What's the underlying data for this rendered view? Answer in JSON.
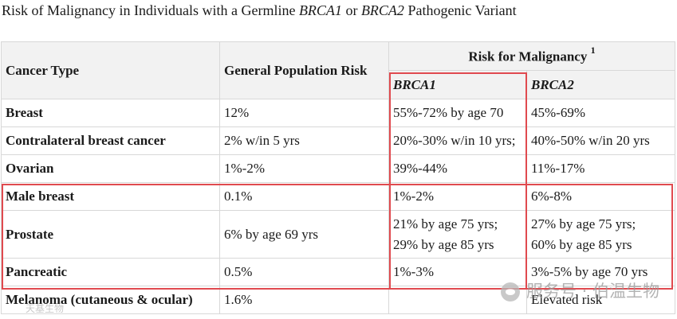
{
  "caption": {
    "prefix": "Risk of Malignancy in Individuals with a Germline ",
    "gene1": "BRCA1",
    "connector": " or ",
    "gene2": "BRCA2",
    "suffix": " Pathogenic Variant"
  },
  "headers": {
    "cancer_type": "Cancer Type",
    "general_risk": "General Population Risk",
    "risk_group": "Risk for Malignancy",
    "footnote_ref": "1",
    "brca1": "BRCA1",
    "brca2": "BRCA2"
  },
  "rows": [
    {
      "type": "Breast",
      "general": "12%",
      "brca1": [
        "55%-72% by age 70"
      ],
      "brca2": [
        "45%-69%"
      ]
    },
    {
      "type": "Contralateral breast cancer",
      "general": "2% w/in 5 yrs",
      "brca1": [
        "20%-30% w/in 10 yrs;"
      ],
      "brca2": [
        "40%-50% w/in 20 yrs"
      ]
    },
    {
      "type": "Ovarian",
      "general": "1%-2%",
      "brca1": [
        "39%-44%"
      ],
      "brca2": [
        "11%-17%"
      ]
    },
    {
      "type": "Male breast",
      "general": "0.1%",
      "brca1": [
        "1%-2%"
      ],
      "brca2": [
        "6%-8%"
      ]
    },
    {
      "type": "Prostate",
      "general": "6% by age 69 yrs",
      "brca1": [
        "21% by age 75 yrs;",
        "29% by age 85 yrs"
      ],
      "brca2": [
        "27% by age 75 yrs;",
        "60% by age 85 yrs"
      ]
    },
    {
      "type": "Pancreatic",
      "general": "0.5%",
      "brca1": [
        "1%-3%"
      ],
      "brca2": [
        "3%-5% by age 70 yrs"
      ]
    },
    {
      "type": "Melanoma (cutaneous & ocular)",
      "general": "1.6%",
      "brca1": [
        ""
      ],
      "brca2": [
        "Elevated risk"
      ]
    }
  ],
  "watermark": {
    "text": "服务号 · 伯温生物",
    "small": "天基生物"
  },
  "colors": {
    "highlight": "#e04a4f",
    "header_bg": "#f2f2f2",
    "border": "#d8d8d8"
  }
}
